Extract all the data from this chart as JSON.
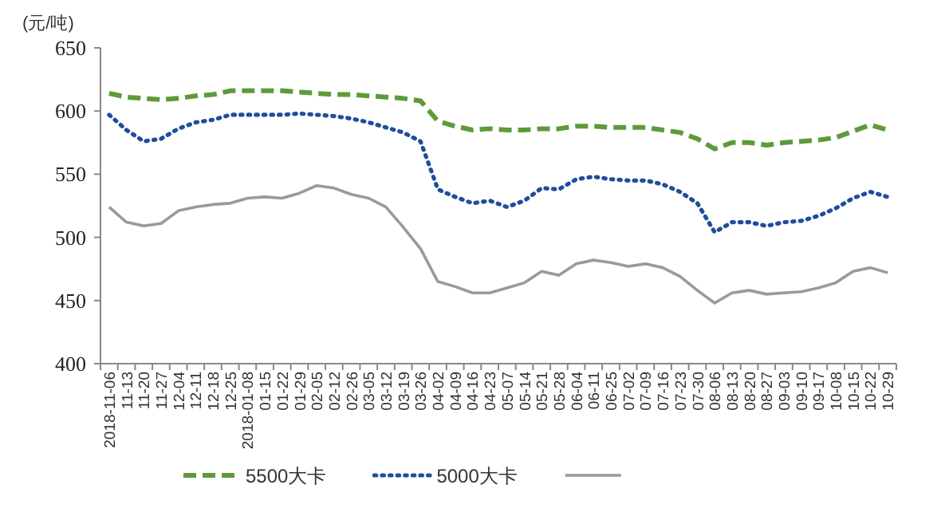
{
  "chart_data": {
    "type": "line",
    "ylabel": "(元/吨)",
    "categories": [
      "2018-11-06",
      "11-13",
      "11-20",
      "11-27",
      "12-04",
      "12-11",
      "12-18",
      "12-25",
      "2018-01-08",
      "01-15",
      "01-22",
      "01-29",
      "02-05",
      "02-12",
      "02-26",
      "03-05",
      "03-12",
      "03-19",
      "03-26",
      "04-02",
      "04-09",
      "04-16",
      "04-23",
      "05-07",
      "05-14",
      "05-21",
      "05-28",
      "06-04",
      "06-11",
      "06-25",
      "07-02",
      "07-09",
      "07-16",
      "07-23",
      "07-30",
      "08-06",
      "08-13",
      "08-20",
      "08-27",
      "09-03",
      "09-10",
      "09-17",
      "10-08",
      "10-15",
      "10-22",
      "10-29"
    ],
    "series": [
      {
        "name": "5500大卡",
        "color": "#5e9a3a",
        "line_style": "dashed",
        "values": [
          614,
          611,
          610,
          609,
          610,
          612,
          613,
          616,
          616,
          616,
          616,
          615,
          614,
          613,
          613,
          612,
          611,
          610,
          608,
          592,
          588,
          585,
          586,
          585,
          585,
          586,
          586,
          588,
          588,
          587,
          587,
          587,
          585,
          583,
          578,
          570,
          575,
          575,
          573,
          575,
          576,
          577,
          579,
          584,
          589,
          585
        ]
      },
      {
        "name": "5000大卡",
        "color": "#1f4e9c",
        "line_style": "dotted",
        "values": [
          597,
          585,
          576,
          578,
          586,
          591,
          593,
          597,
          597,
          597,
          597,
          598,
          597,
          596,
          594,
          591,
          587,
          583,
          576,
          538,
          532,
          527,
          529,
          524,
          529,
          539,
          538,
          546,
          548,
          546,
          545,
          545,
          542,
          536,
          527,
          504,
          512,
          512,
          509,
          512,
          513,
          517,
          523,
          531,
          536,
          532
        ]
      },
      {
        "color": "#9a9a9a",
        "line_style": "solid",
        "values": [
          524,
          512,
          509,
          511,
          521,
          524,
          526,
          527,
          531,
          532,
          531,
          535,
          541,
          539,
          534,
          531,
          524,
          508,
          491,
          465,
          461,
          456,
          456,
          460,
          464,
          473,
          470,
          479,
          482,
          480,
          477,
          479,
          476,
          469,
          458,
          448,
          456,
          458,
          455,
          456,
          457,
          460,
          464,
          473,
          476,
          472
        ]
      }
    ],
    "ylim": [
      400,
      650
    ],
    "yticks": [
      400,
      450,
      500,
      550,
      600,
      650
    ],
    "legend": "bottom"
  }
}
